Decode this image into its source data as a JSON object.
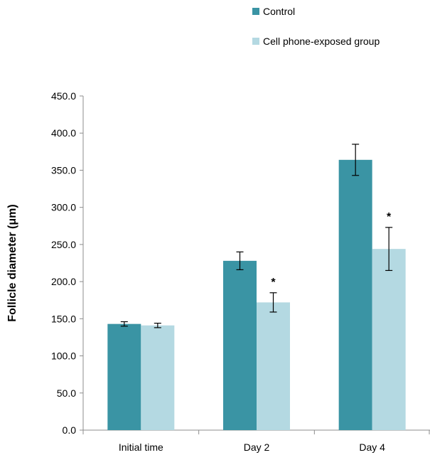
{
  "chart_data": {
    "type": "bar",
    "categories": [
      "Initial time",
      "Day 2",
      "Day 4"
    ],
    "series": [
      {
        "name": "Control",
        "color": "#3a94a4",
        "values": [
          143,
          228,
          364
        ],
        "errors": [
          3,
          12,
          21
        ]
      },
      {
        "name": "Cell phone-exposed group",
        "color": "#b4d9e2",
        "values": [
          141,
          172,
          244
        ],
        "errors": [
          3,
          13,
          29
        ]
      }
    ],
    "significance": [
      {
        "category": "Day 2",
        "series": "Cell phone-exposed group",
        "label": "*"
      },
      {
        "category": "Day 4",
        "series": "Cell phone-exposed group",
        "label": "*"
      }
    ],
    "ylabel": "Follicle diameter (μm)",
    "xlabel": "",
    "ylim": [
      0,
      450
    ],
    "yticks": [
      "0.0",
      "50.0",
      "100.0",
      "150.0",
      "200.0",
      "250.0",
      "300.0",
      "350.0",
      "400.0",
      "450.0"
    ],
    "grid": false,
    "legend_position": "top-right"
  }
}
